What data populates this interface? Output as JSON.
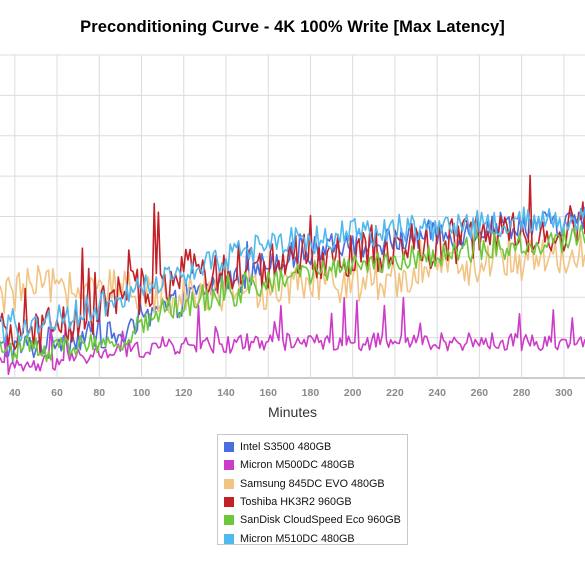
{
  "chart_data": {
    "type": "line",
    "title": "Preconditioning Curve - 4K 100% Write [Max Latency]",
    "xlabel": "Minutes",
    "ylabel": "",
    "x_ticks": [
      40,
      60,
      80,
      100,
      120,
      140,
      160,
      180,
      200,
      220,
      240,
      260,
      280,
      300
    ],
    "xlim": [
      33,
      310
    ],
    "grid": true,
    "legend_position": "bottom-center",
    "series": [
      {
        "name": "Intel S3500 480GB",
        "color": "#4a6ee0",
        "x": [
          35,
          50,
          60,
          70,
          80,
          90,
          100,
          110,
          120,
          130,
          140,
          150,
          160,
          170,
          180,
          190,
          200,
          210,
          220,
          230,
          240,
          250,
          260,
          270,
          280,
          290,
          300,
          310
        ],
        "values": [
          0.07,
          0.08,
          0.1,
          0.1,
          0.11,
          0.1,
          0.13,
          0.17,
          0.19,
          0.22,
          0.24,
          0.25,
          0.29,
          0.3,
          0.31,
          0.34,
          0.33,
          0.33,
          0.34,
          0.35,
          0.36,
          0.35,
          0.37,
          0.38,
          0.38,
          0.38,
          0.38,
          0.39
        ]
      },
      {
        "name": "Micron M500DC 480GB",
        "color": "#cc3cc8",
        "x": [
          35,
          50,
          60,
          70,
          80,
          90,
          100,
          110,
          120,
          130,
          140,
          150,
          160,
          170,
          180,
          190,
          200,
          210,
          220,
          230,
          240,
          250,
          260,
          270,
          280,
          290,
          300,
          310
        ],
        "values": [
          0.02,
          0.03,
          0.04,
          0.05,
          0.06,
          0.07,
          0.07,
          0.08,
          0.08,
          0.08,
          0.08,
          0.09,
          0.09,
          0.09,
          0.09,
          0.09,
          0.09,
          0.09,
          0.09,
          0.09,
          0.09,
          0.09,
          0.09,
          0.09,
          0.09,
          0.09,
          0.09,
          0.09
        ]
      },
      {
        "name": "Samsung 845DC EVO 480GB",
        "color": "#f2c484",
        "x": [
          35,
          50,
          60,
          70,
          80,
          90,
          100,
          110,
          120,
          130,
          140,
          150,
          160,
          170,
          180,
          190,
          200,
          210,
          220,
          230,
          240,
          250,
          260,
          270,
          280,
          290,
          300,
          310
        ],
        "values": [
          0.2,
          0.23,
          0.22,
          0.22,
          0.21,
          0.22,
          0.2,
          0.21,
          0.21,
          0.22,
          0.21,
          0.22,
          0.22,
          0.23,
          0.23,
          0.23,
          0.24,
          0.24,
          0.25,
          0.25,
          0.27,
          0.27,
          0.28,
          0.29,
          0.29,
          0.3,
          0.3,
          0.31
        ]
      },
      {
        "name": "Toshiba HK3R2 960GB",
        "color": "#c42028",
        "x": [
          35,
          50,
          60,
          70,
          80,
          90,
          100,
          110,
          120,
          130,
          140,
          150,
          160,
          170,
          180,
          190,
          200,
          210,
          220,
          230,
          240,
          250,
          260,
          270,
          280,
          290,
          300,
          310
        ],
        "values": [
          0.1,
          0.12,
          0.13,
          0.14,
          0.17,
          0.2,
          0.22,
          0.24,
          0.26,
          0.26,
          0.27,
          0.27,
          0.28,
          0.29,
          0.3,
          0.31,
          0.31,
          0.32,
          0.32,
          0.33,
          0.33,
          0.34,
          0.35,
          0.35,
          0.36,
          0.36,
          0.37,
          0.38
        ]
      },
      {
        "name": "SanDisk CloudSpeed Eco 960GB",
        "color": "#6cc83a",
        "x": [
          35,
          50,
          60,
          70,
          80,
          90,
          100,
          110,
          120,
          130,
          140,
          150,
          160,
          170,
          180,
          190,
          200,
          210,
          220,
          230,
          240,
          250,
          260,
          270,
          280,
          290,
          300,
          310
        ],
        "values": [
          0.07,
          0.07,
          0.07,
          0.08,
          0.08,
          0.09,
          0.13,
          0.17,
          0.18,
          0.19,
          0.2,
          0.22,
          0.24,
          0.25,
          0.26,
          0.27,
          0.28,
          0.29,
          0.29,
          0.3,
          0.3,
          0.31,
          0.32,
          0.32,
          0.33,
          0.33,
          0.34,
          0.35
        ]
      },
      {
        "name": "Micron M510DC 480GB",
        "color": "#50b8ec",
        "x": [
          35,
          50,
          60,
          70,
          80,
          90,
          100,
          110,
          120,
          130,
          140,
          150,
          160,
          170,
          180,
          190,
          200,
          210,
          220,
          230,
          240,
          250,
          260,
          270,
          280,
          290,
          300,
          310
        ],
        "values": [
          0.12,
          0.13,
          0.15,
          0.16,
          0.18,
          0.2,
          0.22,
          0.24,
          0.26,
          0.28,
          0.3,
          0.31,
          0.33,
          0.34,
          0.34,
          0.35,
          0.36,
          0.36,
          0.37,
          0.37,
          0.37,
          0.38,
          0.38,
          0.38,
          0.39,
          0.39,
          0.39,
          0.39
        ]
      }
    ]
  }
}
